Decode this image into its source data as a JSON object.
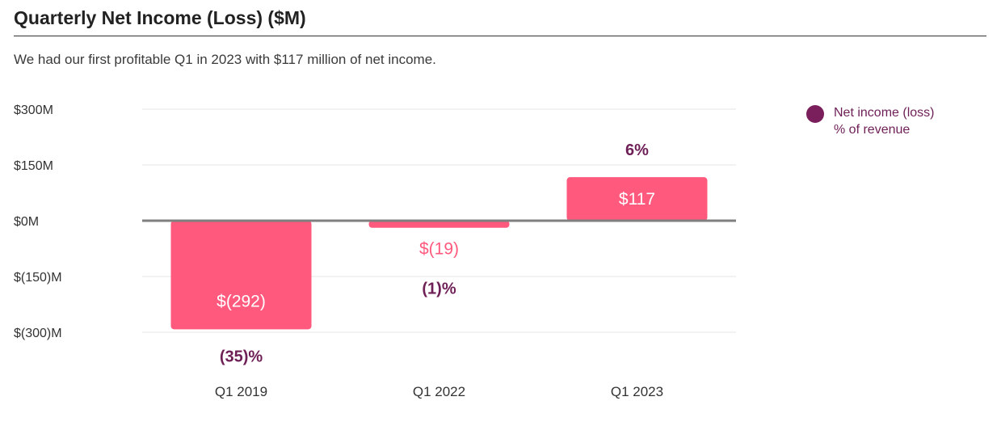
{
  "header": {
    "title": "Quarterly Net Income (Loss) ($M)",
    "subtitle": "We had our first profitable Q1 in 2023 with $117 million of net income."
  },
  "legend": {
    "label": "Net income (loss)",
    "sublabel": "% of revenue",
    "dot_color": "#7a1f5c"
  },
  "colors": {
    "bar": "#ff5a7e",
    "bar_label_inside": "#ffffff",
    "bar_label_outside": "#ff5a7e",
    "percent_label": "#6e1f56",
    "text": "#333333",
    "grid": "#e4e4e4",
    "zero_line": "#7f7f7f"
  },
  "chart_data": {
    "type": "bar",
    "categories": [
      "Q1 2019",
      "Q1 2022",
      "Q1 2023"
    ],
    "series": [
      {
        "name": "Net income (loss)",
        "values": [
          -292,
          -19,
          117
        ]
      }
    ],
    "value_labels": [
      "$(292)",
      "$(19)",
      "$117"
    ],
    "percent_of_revenue": [
      "(35)%",
      "(1)%",
      "6%"
    ],
    "yticks": [
      300,
      150,
      0,
      -150,
      -300
    ],
    "ytick_labels": [
      "$300M",
      "$150M",
      "$0M",
      "$(150)M",
      "$(300)M"
    ],
    "ylim": [
      -300,
      300
    ],
    "grid": true,
    "legend_position": "top-right"
  }
}
